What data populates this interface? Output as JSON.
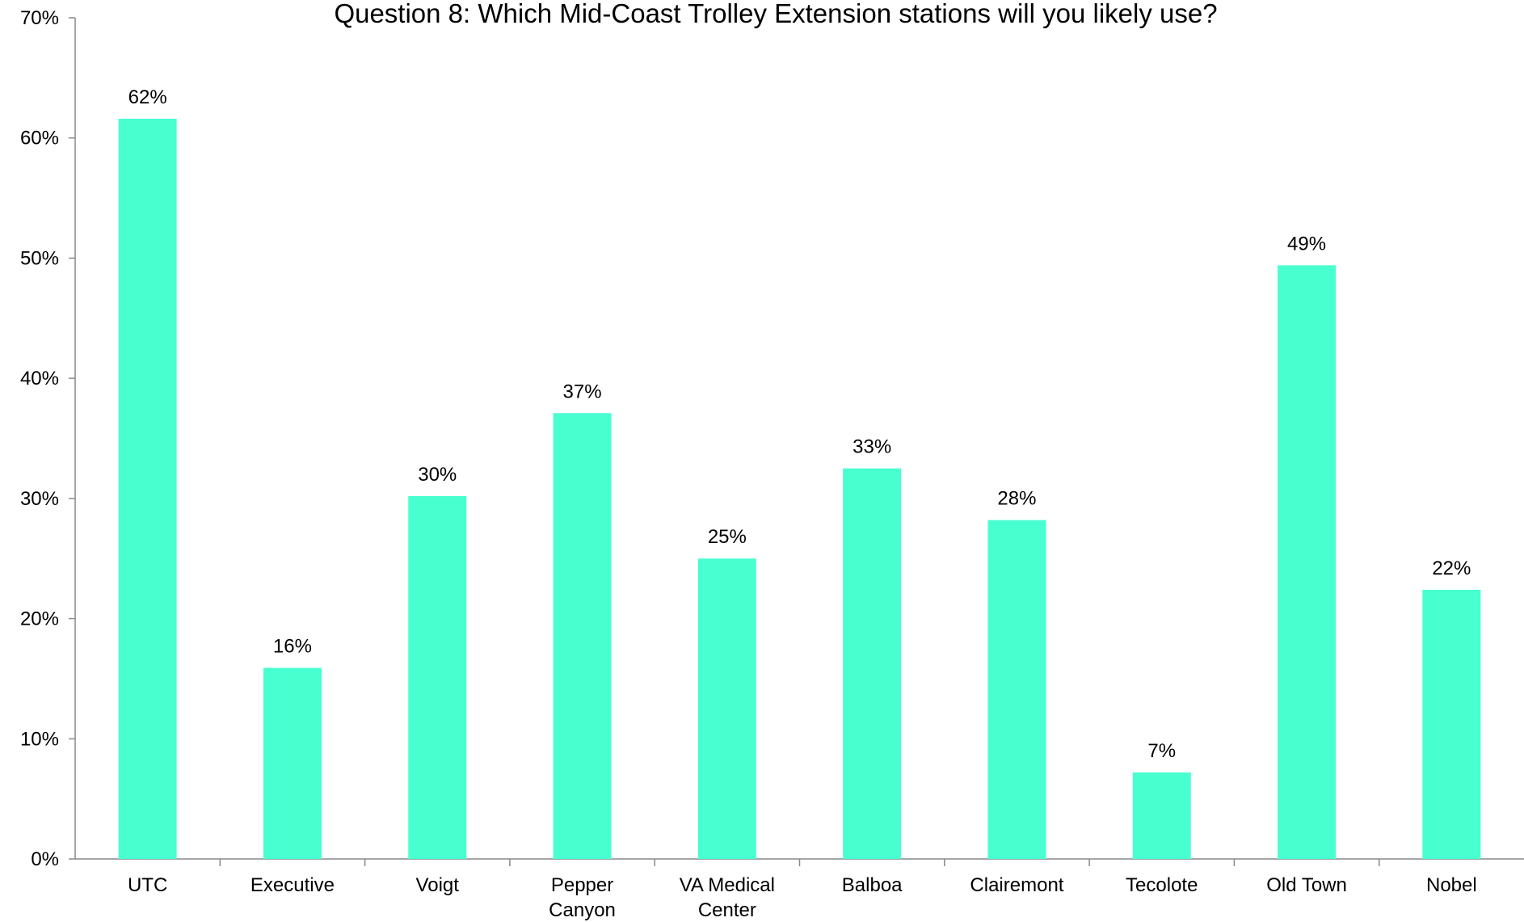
{
  "chart_data": {
    "type": "bar",
    "title": "Question 8: Which Mid-Coast Trolley Extension stations will you likely use?",
    "xlabel": "",
    "ylabel": "",
    "categories": [
      "UTC",
      "Executive",
      "Voigt",
      "Pepper Canyon",
      "VA Medical Center",
      "Balboa",
      "Clairemont",
      "Tecolote",
      "Old Town",
      "Nobel"
    ],
    "category_lines": [
      [
        "UTC"
      ],
      [
        "Executive"
      ],
      [
        "Voigt"
      ],
      [
        "Pepper",
        "Canyon"
      ],
      [
        "VA Medical",
        "Center"
      ],
      [
        "Balboa"
      ],
      [
        "Clairemont"
      ],
      [
        "Tecolote"
      ],
      [
        "Old Town"
      ],
      [
        "Nobel"
      ]
    ],
    "values": [
      61.6,
      15.9,
      30.2,
      37.1,
      25.0,
      32.5,
      28.2,
      7.2,
      49.4,
      22.4
    ],
    "data_labels": [
      "62%",
      "16%",
      "30%",
      "37%",
      "25%",
      "33%",
      "28%",
      "7%",
      "49%",
      "22%"
    ],
    "ylim": [
      0,
      70
    ],
    "yticks": [
      0,
      10,
      20,
      30,
      40,
      50,
      60,
      70
    ],
    "ytick_labels": [
      "0%",
      "10%",
      "20%",
      "30%",
      "40%",
      "50%",
      "60%",
      "70%"
    ],
    "grid": false,
    "legend": "none",
    "colors": {
      "bar": "#48FFD0",
      "axis": "#898989",
      "text": "#000000"
    }
  }
}
